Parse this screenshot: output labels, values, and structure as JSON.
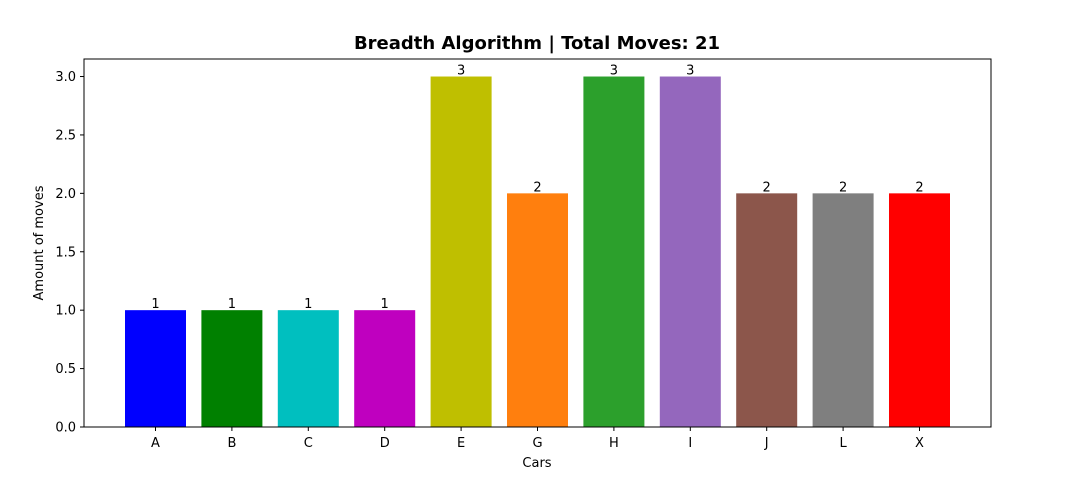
{
  "chart_data": {
    "type": "bar",
    "title": "Breadth Algorithm | Total Moves: 21",
    "xlabel": "Cars",
    "ylabel": "Amount of moves",
    "categories": [
      "A",
      "B",
      "C",
      "D",
      "E",
      "G",
      "H",
      "I",
      "J",
      "L",
      "X"
    ],
    "values": [
      1,
      1,
      1,
      1,
      3,
      2,
      3,
      3,
      2,
      2,
      2
    ],
    "value_labels": [
      "1",
      "1",
      "1",
      "1",
      "3",
      "2",
      "3",
      "3",
      "2",
      "2",
      "2"
    ],
    "colors": [
      "#0000ff",
      "#008000",
      "#00bfbf",
      "#bf00bf",
      "#bfbf00",
      "#ff7f0e",
      "#2ca02c",
      "#9467bd",
      "#8c564b",
      "#7f7f7f",
      "#ff0000"
    ],
    "ylim": [
      0,
      3.15
    ],
    "yticks": [
      0,
      0.5,
      1,
      1.5,
      2,
      2.5,
      3
    ],
    "ytick_labels": [
      "0.0",
      "0.5",
      "1.0",
      "1.5",
      "2.0",
      "2.5",
      "3.0"
    ],
    "grid": false,
    "legend": "none"
  }
}
